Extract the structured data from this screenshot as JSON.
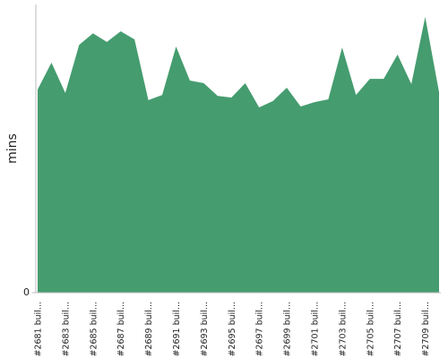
{
  "chart_data": {
    "type": "area",
    "y_label": "mins",
    "color": "#459c6f",
    "categories": [
      "#2681 buil...",
      null,
      "#2683 buil...",
      null,
      "#2685 buil...",
      null,
      "#2687 buil...",
      null,
      "#2689 buil...",
      null,
      "#2691 buil...",
      null,
      "#2693 buil...",
      null,
      "#2695 buil...",
      null,
      "#2697 buil...",
      null,
      "#2699 buil...",
      null,
      "#2701 buil...",
      null,
      "#2703 buil...",
      null,
      "#2705 buil...",
      null,
      "#2707 buil...",
      null,
      "#2709 buil...",
      null
    ],
    "values": [
      70.5,
      79.8,
      69.3,
      86,
      90,
      87,
      90.7,
      87.9,
      66.8,
      68.6,
      85.4,
      73.6,
      72.7,
      68.3,
      67.7,
      72.7,
      64.3,
      66.5,
      71.1,
      64.6,
      66.1,
      67.1,
      85.1,
      68.6,
      74.2,
      74.2,
      82.6,
      72.4,
      95.7,
      69.6
    ],
    "ylim": [
      0,
      100
    ],
    "yticks": [
      0
    ]
  }
}
